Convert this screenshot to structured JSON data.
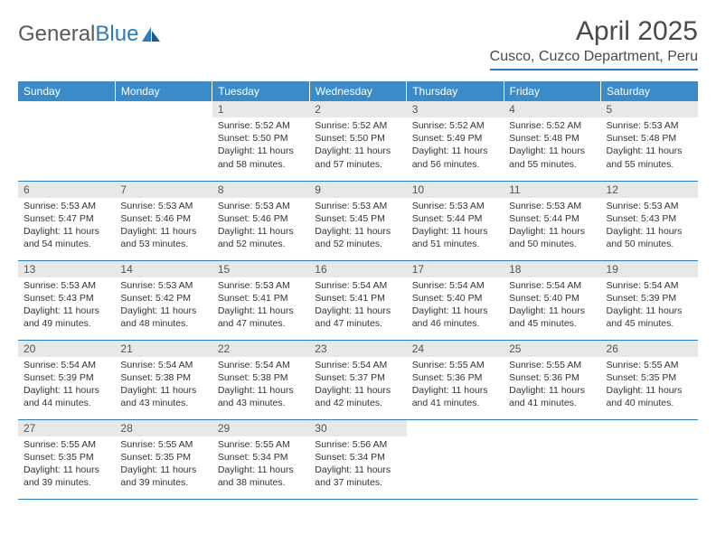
{
  "logo": {
    "text1": "General",
    "text2": "Blue"
  },
  "title": "April 2025",
  "location": "Cusco, Cuzco Department, Peru",
  "headers": [
    "Sunday",
    "Monday",
    "Tuesday",
    "Wednesday",
    "Thursday",
    "Friday",
    "Saturday"
  ],
  "colors": {
    "header_bg": "#3b8bc9",
    "header_text": "#ffffff",
    "border": "#2f7bbf",
    "daynum_bg": "#e8e8e8",
    "text": "#333333"
  },
  "weeks": [
    [
      null,
      null,
      {
        "n": "1",
        "sr": "5:52 AM",
        "ss": "5:50 PM",
        "dl": "11 hours and 58 minutes."
      },
      {
        "n": "2",
        "sr": "5:52 AM",
        "ss": "5:50 PM",
        "dl": "11 hours and 57 minutes."
      },
      {
        "n": "3",
        "sr": "5:52 AM",
        "ss": "5:49 PM",
        "dl": "11 hours and 56 minutes."
      },
      {
        "n": "4",
        "sr": "5:52 AM",
        "ss": "5:48 PM",
        "dl": "11 hours and 55 minutes."
      },
      {
        "n": "5",
        "sr": "5:53 AM",
        "ss": "5:48 PM",
        "dl": "11 hours and 55 minutes."
      }
    ],
    [
      {
        "n": "6",
        "sr": "5:53 AM",
        "ss": "5:47 PM",
        "dl": "11 hours and 54 minutes."
      },
      {
        "n": "7",
        "sr": "5:53 AM",
        "ss": "5:46 PM",
        "dl": "11 hours and 53 minutes."
      },
      {
        "n": "8",
        "sr": "5:53 AM",
        "ss": "5:46 PM",
        "dl": "11 hours and 52 minutes."
      },
      {
        "n": "9",
        "sr": "5:53 AM",
        "ss": "5:45 PM",
        "dl": "11 hours and 52 minutes."
      },
      {
        "n": "10",
        "sr": "5:53 AM",
        "ss": "5:44 PM",
        "dl": "11 hours and 51 minutes."
      },
      {
        "n": "11",
        "sr": "5:53 AM",
        "ss": "5:44 PM",
        "dl": "11 hours and 50 minutes."
      },
      {
        "n": "12",
        "sr": "5:53 AM",
        "ss": "5:43 PM",
        "dl": "11 hours and 50 minutes."
      }
    ],
    [
      {
        "n": "13",
        "sr": "5:53 AM",
        "ss": "5:43 PM",
        "dl": "11 hours and 49 minutes."
      },
      {
        "n": "14",
        "sr": "5:53 AM",
        "ss": "5:42 PM",
        "dl": "11 hours and 48 minutes."
      },
      {
        "n": "15",
        "sr": "5:53 AM",
        "ss": "5:41 PM",
        "dl": "11 hours and 47 minutes."
      },
      {
        "n": "16",
        "sr": "5:54 AM",
        "ss": "5:41 PM",
        "dl": "11 hours and 47 minutes."
      },
      {
        "n": "17",
        "sr": "5:54 AM",
        "ss": "5:40 PM",
        "dl": "11 hours and 46 minutes."
      },
      {
        "n": "18",
        "sr": "5:54 AM",
        "ss": "5:40 PM",
        "dl": "11 hours and 45 minutes."
      },
      {
        "n": "19",
        "sr": "5:54 AM",
        "ss": "5:39 PM",
        "dl": "11 hours and 45 minutes."
      }
    ],
    [
      {
        "n": "20",
        "sr": "5:54 AM",
        "ss": "5:39 PM",
        "dl": "11 hours and 44 minutes."
      },
      {
        "n": "21",
        "sr": "5:54 AM",
        "ss": "5:38 PM",
        "dl": "11 hours and 43 minutes."
      },
      {
        "n": "22",
        "sr": "5:54 AM",
        "ss": "5:38 PM",
        "dl": "11 hours and 43 minutes."
      },
      {
        "n": "23",
        "sr": "5:54 AM",
        "ss": "5:37 PM",
        "dl": "11 hours and 42 minutes."
      },
      {
        "n": "24",
        "sr": "5:55 AM",
        "ss": "5:36 PM",
        "dl": "11 hours and 41 minutes."
      },
      {
        "n": "25",
        "sr": "5:55 AM",
        "ss": "5:36 PM",
        "dl": "11 hours and 41 minutes."
      },
      {
        "n": "26",
        "sr": "5:55 AM",
        "ss": "5:35 PM",
        "dl": "11 hours and 40 minutes."
      }
    ],
    [
      {
        "n": "27",
        "sr": "5:55 AM",
        "ss": "5:35 PM",
        "dl": "11 hours and 39 minutes."
      },
      {
        "n": "28",
        "sr": "5:55 AM",
        "ss": "5:35 PM",
        "dl": "11 hours and 39 minutes."
      },
      {
        "n": "29",
        "sr": "5:55 AM",
        "ss": "5:34 PM",
        "dl": "11 hours and 38 minutes."
      },
      {
        "n": "30",
        "sr": "5:56 AM",
        "ss": "5:34 PM",
        "dl": "11 hours and 37 minutes."
      },
      null,
      null,
      null
    ]
  ],
  "labels": {
    "sunrise": "Sunrise:",
    "sunset": "Sunset:",
    "daylight": "Daylight:"
  }
}
